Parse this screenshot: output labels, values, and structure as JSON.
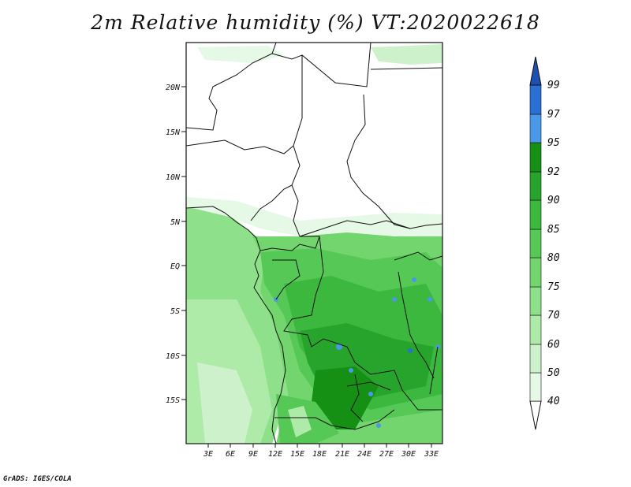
{
  "title": "2m Relative humidity (%) VT:2020022618",
  "credit": "GrADS: IGES/COLA",
  "map": {
    "lat_labels": [
      "20N",
      "15N",
      "10N",
      "5N",
      "EQ",
      "5S",
      "10S",
      "15S"
    ],
    "lon_labels": [
      "3E",
      "6E",
      "9E",
      "12E",
      "15E",
      "18E",
      "21E",
      "24E",
      "27E",
      "30E",
      "33E"
    ]
  },
  "colorbar": {
    "levels": [
      "40",
      "50",
      "60",
      "70",
      "75",
      "80",
      "85",
      "90",
      "92",
      "95",
      "97",
      "99"
    ],
    "colors": [
      "#ffffff",
      "#e6f8e6",
      "#cdf2cb",
      "#aeeaa8",
      "#8fe08a",
      "#72d56e",
      "#55c856",
      "#3cb83f",
      "#27a42b",
      "#159015",
      "#4a99e8",
      "#2a6fd4",
      "#1f4fb0"
    ]
  }
}
